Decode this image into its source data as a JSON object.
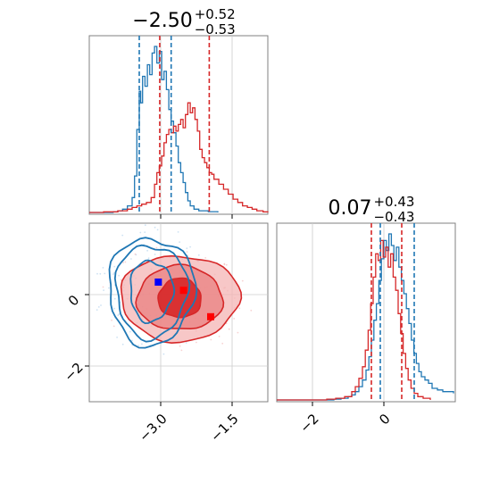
{
  "chart_data": [
    {
      "type": "histogram",
      "panel": "top-left",
      "title": {
        "value": "−2.50",
        "plus": "+0.52",
        "minus": "−0.53"
      },
      "x": {
        "lim": [
          -4.5,
          -0.75
        ],
        "ticks": [
          -3.0,
          -1.5
        ],
        "tick_labels": [
          "",
          ""
        ]
      },
      "grid": true,
      "series": [
        {
          "color": "#1f77b4",
          "lines": [
            -3.45,
            -2.78
          ],
          "bins": [
            [
              -4.5,
              0
            ],
            [
              -4.0,
              0.004
            ],
            [
              -3.9,
              0.01
            ],
            [
              -3.8,
              0.02
            ],
            [
              -3.7,
              0.04
            ],
            [
              -3.6,
              0.09
            ],
            [
              -3.55,
              0.22
            ],
            [
              -3.5,
              0.5
            ],
            [
              -3.45,
              0.73
            ],
            [
              -3.42,
              0.66
            ],
            [
              -3.38,
              0.82
            ],
            [
              -3.33,
              0.76
            ],
            [
              -3.28,
              0.89
            ],
            [
              -3.23,
              0.83
            ],
            [
              -3.18,
              0.96
            ],
            [
              -3.13,
              1.0
            ],
            [
              -3.08,
              0.9
            ],
            [
              -3.03,
              0.97
            ],
            [
              -2.98,
              0.8
            ],
            [
              -2.93,
              0.85
            ],
            [
              -2.88,
              0.74
            ],
            [
              -2.83,
              0.62
            ],
            [
              -2.78,
              0.55
            ],
            [
              -2.73,
              0.48
            ],
            [
              -2.68,
              0.4
            ],
            [
              -2.63,
              0.3
            ],
            [
              -2.58,
              0.24
            ],
            [
              -2.53,
              0.18
            ],
            [
              -2.48,
              0.12
            ],
            [
              -2.43,
              0.07
            ],
            [
              -2.38,
              0.04
            ],
            [
              -2.3,
              0.02
            ],
            [
              -2.2,
              0.01
            ],
            [
              -2.0,
              0.005
            ],
            [
              -1.8,
              0
            ]
          ]
        },
        {
          "color": "#d62728",
          "lines": [
            -3.02,
            -1.98
          ],
          "bins": [
            [
              -4.5,
              0
            ],
            [
              -4.2,
              0.004
            ],
            [
              -3.9,
              0.01
            ],
            [
              -3.7,
              0.02
            ],
            [
              -3.6,
              0.03
            ],
            [
              -3.5,
              0.04
            ],
            [
              -3.4,
              0.05
            ],
            [
              -3.3,
              0.06
            ],
            [
              -3.2,
              0.09
            ],
            [
              -3.13,
              0.17
            ],
            [
              -3.08,
              0.24
            ],
            [
              -3.03,
              0.28
            ],
            [
              -2.98,
              0.34
            ],
            [
              -2.93,
              0.42
            ],
            [
              -2.88,
              0.47
            ],
            [
              -2.83,
              0.5
            ],
            [
              -2.78,
              0.48
            ],
            [
              -2.73,
              0.52
            ],
            [
              -2.68,
              0.49
            ],
            [
              -2.63,
              0.53
            ],
            [
              -2.58,
              0.56
            ],
            [
              -2.53,
              0.51
            ],
            [
              -2.48,
              0.59
            ],
            [
              -2.43,
              0.66
            ],
            [
              -2.38,
              0.6
            ],
            [
              -2.33,
              0.63
            ],
            [
              -2.28,
              0.56
            ],
            [
              -2.23,
              0.49
            ],
            [
              -2.18,
              0.38
            ],
            [
              -2.13,
              0.33
            ],
            [
              -2.08,
              0.3
            ],
            [
              -2.03,
              0.27
            ],
            [
              -1.98,
              0.24
            ],
            [
              -1.93,
              0.23
            ],
            [
              -1.88,
              0.2
            ],
            [
              -1.78,
              0.17
            ],
            [
              -1.68,
              0.14
            ],
            [
              -1.58,
              0.11
            ],
            [
              -1.48,
              0.08
            ],
            [
              -1.38,
              0.06
            ],
            [
              -1.28,
              0.04
            ],
            [
              -1.18,
              0.03
            ],
            [
              -1.08,
              0.02
            ],
            [
              -0.98,
              0.01
            ],
            [
              -0.85,
              0.004
            ],
            [
              -0.75,
              0
            ]
          ]
        }
      ]
    },
    {
      "type": "contour",
      "panel": "bottom-left",
      "x": {
        "lim": [
          -4.5,
          -0.75
        ],
        "ticks": [
          -3.0,
          -1.5
        ],
        "tick_labels": [
          "−3.0",
          "−1.5"
        ]
      },
      "y": {
        "lim": [
          -3.0,
          2.0
        ],
        "ticks": [
          -2,
          0
        ],
        "tick_labels": [
          "−2",
          "0"
        ]
      },
      "grid": true,
      "series": [
        {
          "color": "#1f77b4",
          "center": [
            -3.2,
            0.1
          ],
          "contours": [
            [
              0.45,
              0.85
            ],
            [
              0.75,
              1.3
            ],
            [
              0.9,
              1.5
            ]
          ],
          "marker": [
            -3.05,
            0.35
          ]
        },
        {
          "color": "#d62728",
          "center": [
            -2.6,
            -0.1
          ],
          "contours": [
            [
              0.45,
              0.55
            ],
            [
              0.9,
              0.9
            ],
            [
              1.25,
              1.2
            ]
          ],
          "markers": [
            [
              -2.52,
              0.12
            ],
            [
              -1.95,
              -0.62
            ]
          ]
        }
      ]
    },
    {
      "type": "histogram",
      "panel": "bottom-right",
      "title": {
        "value": "0.07",
        "plus": "+0.43",
        "minus": "−0.43"
      },
      "x": {
        "lim": [
          -3.0,
          2.0
        ],
        "ticks": [
          -2,
          0
        ],
        "tick_labels": [
          "−2",
          "0"
        ]
      },
      "grid": true,
      "series": [
        {
          "color": "#1f77b4",
          "lines": [
            -0.1,
            0.85
          ],
          "bins": [
            [
              -3.0,
              0
            ],
            [
              -1.4,
              0.005
            ],
            [
              -1.2,
              0.01
            ],
            [
              -1.0,
              0.02
            ],
            [
              -0.9,
              0.03
            ],
            [
              -0.8,
              0.05
            ],
            [
              -0.7,
              0.08
            ],
            [
              -0.6,
              0.12
            ],
            [
              -0.5,
              0.18
            ],
            [
              -0.42,
              0.26
            ],
            [
              -0.35,
              0.36
            ],
            [
              -0.28,
              0.48
            ],
            [
              -0.21,
              0.58
            ],
            [
              -0.14,
              0.72
            ],
            [
              -0.07,
              0.85
            ],
            [
              0.0,
              0.96
            ],
            [
              0.07,
              0.9
            ],
            [
              0.14,
              1.0
            ],
            [
              0.21,
              0.93
            ],
            [
              0.28,
              0.84
            ],
            [
              0.35,
              0.92
            ],
            [
              0.42,
              0.8
            ],
            [
              0.49,
              0.72
            ],
            [
              0.56,
              0.64
            ],
            [
              0.63,
              0.55
            ],
            [
              0.7,
              0.46
            ],
            [
              0.77,
              0.36
            ],
            [
              0.84,
              0.28
            ],
            [
              0.91,
              0.22
            ],
            [
              0.98,
              0.17
            ],
            [
              1.05,
              0.14
            ],
            [
              1.15,
              0.12
            ],
            [
              1.25,
              0.1
            ],
            [
              1.35,
              0.07
            ],
            [
              1.5,
              0.06
            ],
            [
              1.65,
              0.05
            ],
            [
              1.8,
              0.05
            ],
            [
              1.95,
              0.04
            ]
          ]
        },
        {
          "color": "#d62728",
          "lines": [
            -0.35,
            0.5
          ],
          "bins": [
            [
              -3.0,
              0
            ],
            [
              -1.6,
              0.005
            ],
            [
              -1.35,
              0.01
            ],
            [
              -1.1,
              0.02
            ],
            [
              -0.9,
              0.05
            ],
            [
              -0.8,
              0.08
            ],
            [
              -0.7,
              0.13
            ],
            [
              -0.6,
              0.2
            ],
            [
              -0.52,
              0.3
            ],
            [
              -0.44,
              0.42
            ],
            [
              -0.37,
              0.58
            ],
            [
              -0.3,
              0.74
            ],
            [
              -0.23,
              0.88
            ],
            [
              -0.16,
              0.84
            ],
            [
              -0.09,
              0.96
            ],
            [
              -0.02,
              0.86
            ],
            [
              0.05,
              0.92
            ],
            [
              0.12,
              0.8
            ],
            [
              0.19,
              0.88
            ],
            [
              0.26,
              0.74
            ],
            [
              0.33,
              0.66
            ],
            [
              0.4,
              0.52
            ],
            [
              0.47,
              0.4
            ],
            [
              0.54,
              0.28
            ],
            [
              0.61,
              0.19
            ],
            [
              0.68,
              0.12
            ],
            [
              0.76,
              0.07
            ],
            [
              0.85,
              0.04
            ],
            [
              0.95,
              0.02
            ],
            [
              1.1,
              0.01
            ],
            [
              1.3,
              0
            ]
          ]
        }
      ]
    }
  ]
}
